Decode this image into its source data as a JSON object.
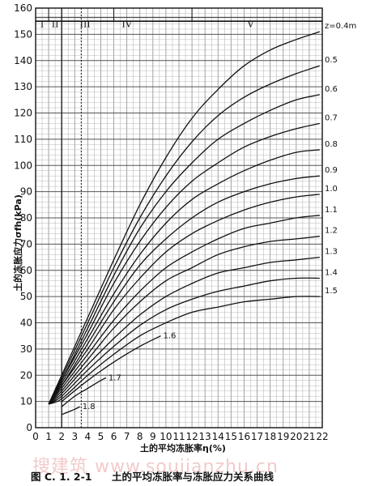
{
  "chart_data": {
    "type": "line",
    "title": "",
    "xlabel": "土的平均冻胀率η(%)",
    "ylabel": "土的冻胀应力σfh(kPa)",
    "xlim": [
      0,
      22
    ],
    "ylim": [
      0,
      160
    ],
    "x_ticks": [
      0,
      1,
      2,
      3,
      4,
      5,
      6,
      7,
      8,
      9,
      10,
      11,
      12,
      13,
      14,
      15,
      16,
      17,
      18,
      19,
      20,
      21,
      22
    ],
    "y_ticks": [
      0,
      10,
      20,
      30,
      40,
      50,
      60,
      70,
      80,
      90,
      100,
      110,
      120,
      130,
      140,
      150,
      160
    ],
    "grid": true,
    "zones": {
      "labels": [
        "I",
        "II",
        "III",
        "IV",
        "V"
      ],
      "boundaries_x": [
        1,
        2,
        3.5,
        6,
        12
      ]
    },
    "series": [
      {
        "name": "z=0.4m",
        "x": [
          1,
          2,
          4,
          6,
          8,
          10,
          12,
          14,
          16,
          18,
          20,
          21.8
        ],
        "y": [
          9,
          20,
          42,
          64,
          85,
          103,
          118,
          129,
          138,
          144,
          148,
          151
        ]
      },
      {
        "name": "0.5",
        "x": [
          1,
          2,
          4,
          6,
          8,
          10,
          12,
          14,
          16,
          18,
          20,
          21.8
        ],
        "y": [
          9,
          19,
          40,
          61,
          80,
          96,
          109,
          119,
          126,
          131,
          135,
          138
        ]
      },
      {
        "name": "0.6",
        "x": [
          1,
          2,
          4,
          6,
          8,
          10,
          12,
          14,
          16,
          18,
          20,
          21.8
        ],
        "y": [
          9,
          18,
          38,
          58,
          76,
          90,
          101,
          110,
          116,
          121,
          125,
          127
        ]
      },
      {
        "name": "0.7",
        "x": [
          1,
          2,
          4,
          6,
          8,
          10,
          12,
          14,
          16,
          18,
          20,
          21.8
        ],
        "y": [
          9,
          18,
          36,
          55,
          71,
          84,
          94,
          101,
          107,
          111,
          114,
          116
        ]
      },
      {
        "name": "0.8",
        "x": [
          1,
          2,
          4,
          6,
          8,
          10,
          12,
          14,
          16,
          18,
          20,
          21.8
        ],
        "y": [
          9,
          17,
          34,
          51,
          66,
          78,
          87,
          93,
          98,
          102,
          105,
          106
        ]
      },
      {
        "name": "0.9",
        "x": [
          1,
          2,
          4,
          6,
          8,
          10,
          12,
          14,
          16,
          18,
          20,
          21.8
        ],
        "y": [
          9,
          16,
          32,
          48,
          62,
          72,
          80,
          86,
          90,
          93,
          95,
          96
        ]
      },
      {
        "name": "1.0",
        "x": [
          1,
          2,
          4,
          6,
          8,
          10,
          12,
          14,
          16,
          18,
          20,
          21.8
        ],
        "y": [
          9,
          16,
          30,
          45,
          57,
          67,
          74,
          79,
          83,
          86,
          88,
          89
        ]
      },
      {
        "name": "1.1",
        "x": [
          1,
          2,
          4,
          6,
          8,
          10,
          12,
          14,
          16,
          18,
          20,
          21.8
        ],
        "y": [
          9,
          15,
          28,
          41,
          52,
          61,
          67,
          72,
          76,
          78,
          80,
          81
        ]
      },
      {
        "name": "1.2",
        "x": [
          1,
          2,
          4,
          6,
          8,
          10,
          12,
          14,
          16,
          18,
          20,
          21.8
        ],
        "y": [
          9,
          14,
          26,
          38,
          48,
          56,
          61,
          66,
          69,
          71,
          72,
          73
        ]
      },
      {
        "name": "1.3",
        "x": [
          1,
          2,
          4,
          6,
          8,
          10,
          12,
          14,
          16,
          18,
          20,
          21.8
        ],
        "y": [
          9,
          13,
          24,
          34,
          43,
          50,
          55,
          59,
          61,
          63,
          64,
          65
        ]
      },
      {
        "name": "1.4",
        "x": [
          1,
          2,
          4,
          6,
          8,
          10,
          12,
          14,
          16,
          18,
          20,
          21.8
        ],
        "y": [
          9,
          12,
          22,
          31,
          39,
          45,
          49,
          52,
          54,
          56,
          57,
          57
        ]
      },
      {
        "name": "1.5",
        "x": [
          1,
          2,
          4,
          6,
          8,
          10,
          12,
          14,
          16,
          18,
          20,
          21.8
        ],
        "y": [
          9,
          11,
          20,
          28,
          35,
          40,
          44,
          46,
          48,
          49,
          50,
          50
        ]
      },
      {
        "name": "1.6",
        "x": [
          2,
          4,
          6,
          8,
          9.6
        ],
        "y": [
          10,
          18,
          25,
          31,
          35
        ]
      },
      {
        "name": "1.7",
        "x": [
          2,
          3,
          4,
          5,
          5.4
        ],
        "y": [
          8,
          12,
          15,
          18,
          19
        ]
      },
      {
        "name": "1.8",
        "x": [
          2,
          2.5,
          3,
          3.4
        ],
        "y": [
          5,
          6,
          7,
          8
        ]
      }
    ],
    "curve_labels": [
      {
        "text": "z=0.4m",
        "at": [
          21.8,
          151
        ]
      },
      {
        "text": "0.5",
        "at": [
          21.8,
          138
        ]
      },
      {
        "text": "0.6",
        "at": [
          21.8,
          127
        ]
      },
      {
        "text": "0.7",
        "at": [
          21.8,
          116
        ]
      },
      {
        "text": "0.8",
        "at": [
          21.8,
          106
        ]
      },
      {
        "text": "0.9",
        "at": [
          21.8,
          96
        ]
      },
      {
        "text": "1.0",
        "at": [
          21.8,
          89
        ]
      },
      {
        "text": "1.1",
        "at": [
          21.8,
          81
        ]
      },
      {
        "text": "1.2",
        "at": [
          21.8,
          73
        ]
      },
      {
        "text": "1.3",
        "at": [
          21.8,
          65
        ]
      },
      {
        "text": "1.4",
        "at": [
          21.8,
          57
        ]
      },
      {
        "text": "1.5",
        "at": [
          21.8,
          50
        ]
      },
      {
        "text": "1.6",
        "at": [
          9.6,
          35
        ]
      },
      {
        "text": "1.7",
        "at": [
          5.4,
          19
        ]
      },
      {
        "text": "1.8",
        "at": [
          3.4,
          8
        ]
      }
    ]
  },
  "caption": {
    "figure_no": "图 C. 1. 2-1",
    "text": "土的平均冻胀率与冻胀应力关系曲线"
  },
  "watermark": "搜建筑  www.soujianzhu.cn"
}
